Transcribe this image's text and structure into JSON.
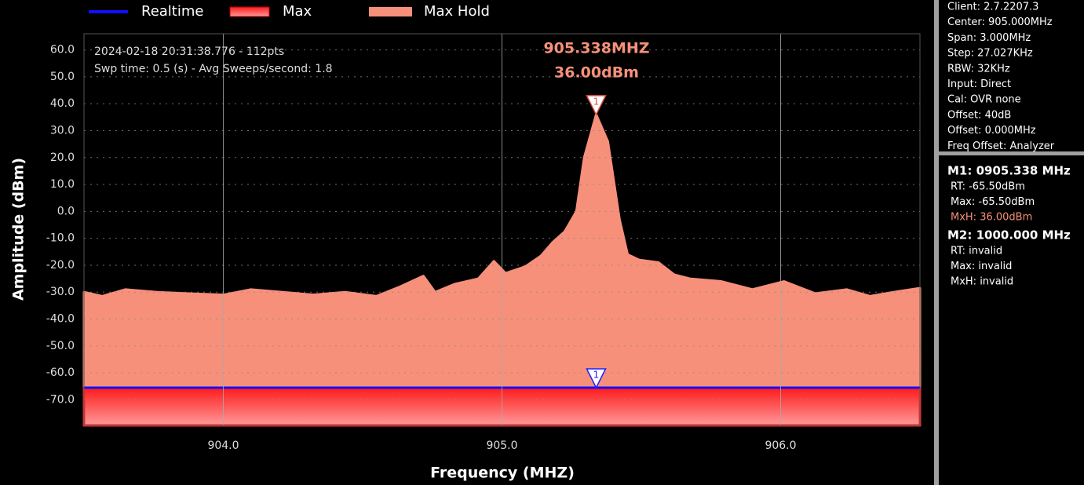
{
  "chart_data": {
    "type": "area",
    "xlabel": "Frequency (MHZ)",
    "ylabel": "Amplitude (dBm)",
    "xlim": [
      903.5,
      906.5
    ],
    "ylim": [
      -79.5,
      66
    ],
    "xticks": [
      {
        "value": 904,
        "label": "904.0"
      },
      {
        "value": 905,
        "label": "905.0"
      },
      {
        "value": 906,
        "label": "906.0"
      }
    ],
    "yticks": [
      {
        "value": 60,
        "label": "60.0"
      },
      {
        "value": 50,
        "label": "50.0"
      },
      {
        "value": 40,
        "label": "40.0"
      },
      {
        "value": 30,
        "label": "30.0"
      },
      {
        "value": 20,
        "label": "20.0"
      },
      {
        "value": 10,
        "label": "10.0"
      },
      {
        "value": 0,
        "label": "0.0"
      },
      {
        "value": -10,
        "label": "-10.0"
      },
      {
        "value": -20,
        "label": "-20.0"
      },
      {
        "value": -30,
        "label": "-30.0"
      },
      {
        "value": -40,
        "label": "-40.0"
      },
      {
        "value": -50,
        "label": "-50.0"
      },
      {
        "value": -60,
        "label": "-60.0"
      },
      {
        "value": -70,
        "label": "-70.0"
      }
    ],
    "grid": true,
    "series": [
      {
        "name": "Realtime",
        "color": "#1010ff",
        "style": "line",
        "x": [
          903.5,
          906.5
        ],
        "values": [
          -65.5,
          -65.5
        ]
      },
      {
        "name": "Max",
        "color": "#ff2a2a",
        "style": "area",
        "x": [
          903.5,
          906.5
        ],
        "values": [
          -65.5,
          -65.5
        ]
      },
      {
        "name": "Max Hold",
        "color": "#f7907a",
        "style": "area",
        "x": [
          903.5,
          903.565,
          903.649,
          903.762,
          903.874,
          904.0,
          904.099,
          904.212,
          904.324,
          904.437,
          904.549,
          904.634,
          904.718,
          904.76,
          904.831,
          904.915,
          904.971,
          905.013,
          905.084,
          905.14,
          905.182,
          905.225,
          905.267,
          905.295,
          905.338,
          905.38,
          905.422,
          905.451,
          905.492,
          905.562,
          905.618,
          905.674,
          905.787,
          905.899,
          906.012,
          906.124,
          906.237,
          906.321,
          906.406,
          906.5
        ],
        "values": [
          -30,
          -31.5,
          -29,
          -30,
          -30.5,
          -31,
          -29,
          -30,
          -31,
          -30,
          -31.5,
          -28,
          -24,
          -30,
          -27,
          -25,
          -18.5,
          -23,
          -20.5,
          -16.5,
          -11.5,
          -7.5,
          0,
          20,
          36,
          26,
          -3,
          -16,
          -18,
          -19,
          -23.5,
          -25,
          -26,
          -29,
          -26,
          -30.5,
          -29,
          -31.5,
          -30,
          -28.5
        ]
      }
    ],
    "markers": [
      {
        "label": "1",
        "x": 905.338,
        "y": 36,
        "color": "#e05040"
      },
      {
        "label": "1",
        "x": 905.338,
        "y": -65.5,
        "color": "#2020ff"
      }
    ],
    "annotations": [
      "905.338MHZ",
      "36.00dBm"
    ],
    "overlay_text": [
      "2024-02-18 20:31:38.776 - 112pts",
      "Swp time: 0.5 (s) - Avg Sweeps/second: 1.8"
    ]
  },
  "info_panel": [
    "Client: 2.7.2207.3",
    "Center: 905.000MHz",
    "Span: 3.000MHz",
    "Step: 27.027KHz",
    "RBW: 32KHz",
    "Input: Direct",
    "Cal: OVR none",
    "Offset: 40dB",
    "Offset: 0.000MHz",
    "Freq Offset: Analyzer"
  ],
  "marker_panel": [
    {
      "header": "M1: 0905.338 MHz",
      "lines": [
        "RT: -65.50dBm",
        "Max: -65.50dBm",
        "MxH: 36.00dBm"
      ]
    },
    {
      "header": "M2: 1000.000 MHz",
      "lines": [
        "RT: invalid",
        "Max: invalid",
        "MxH: invalid"
      ]
    }
  ]
}
